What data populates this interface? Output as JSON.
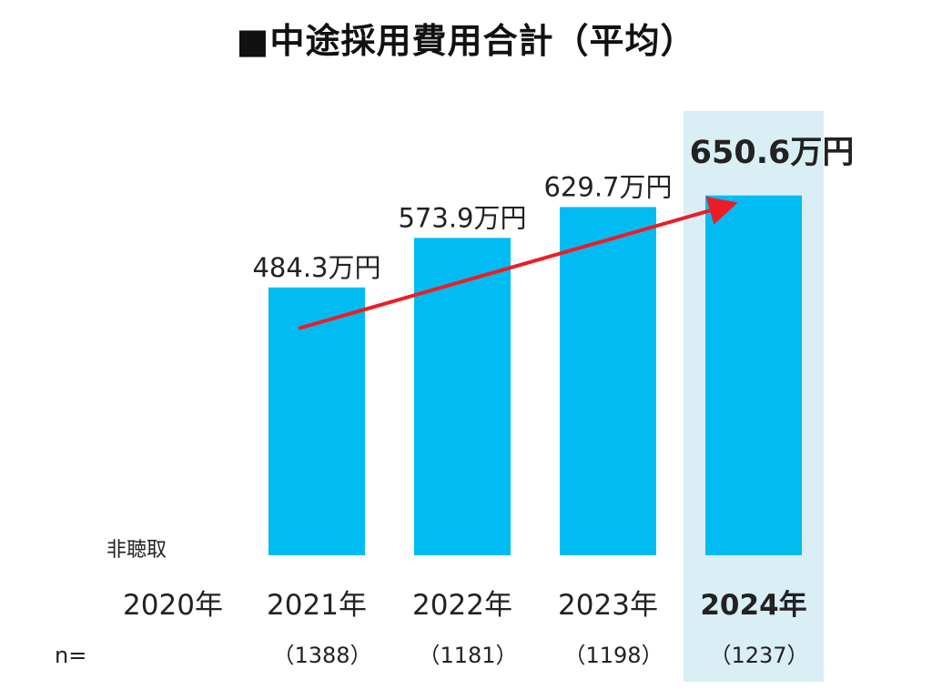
{
  "title": "■中途採用費用合計（平均）",
  "chart_data": {
    "type": "bar",
    "categories": [
      "2020年",
      "2021年",
      "2022年",
      "2023年",
      "2024年"
    ],
    "values": [
      null,
      484.3,
      573.9,
      629.7,
      650.6
    ],
    "value_labels": [
      "",
      "484.3万円",
      "573.9万円",
      "629.7万円",
      "650.6万円"
    ],
    "missing_label": "非聴取",
    "n_prefix": "n=",
    "n_labels": [
      "",
      "（1388）",
      "（1181）",
      "（1198）",
      "（1237）"
    ],
    "highlight_index": 4,
    "trend_arrow": {
      "from": "2021年",
      "to": "2024年"
    },
    "colors": {
      "bar": "#00bcf2",
      "highlight_band": "#d9eef5",
      "arrow": "#ee1c25",
      "text": "#222222"
    },
    "title": "■中途採用費用合計（平均）"
  }
}
